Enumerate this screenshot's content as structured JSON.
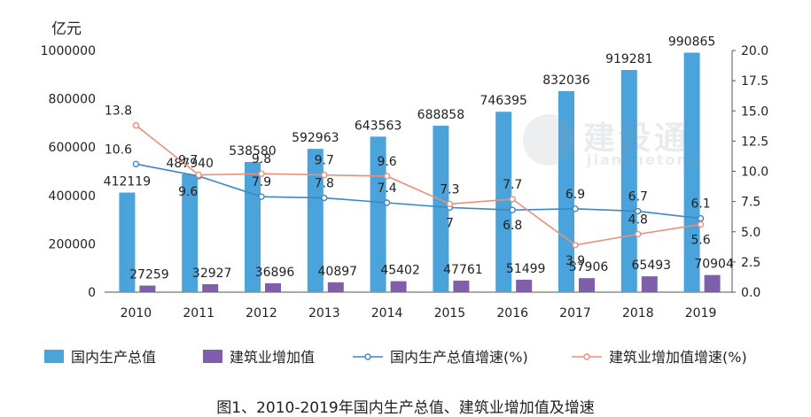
{
  "chart_data": {
    "type": "bar",
    "title": "图1、2010-2019年国内生产总值、建筑业增加值及增速",
    "y_unit": "亿元",
    "categories": [
      "2010",
      "2011",
      "2012",
      "2013",
      "2014",
      "2015",
      "2016",
      "2017",
      "2018",
      "2019"
    ],
    "ylim_left": [
      0,
      1000000
    ],
    "ylim_right": [
      0,
      20
    ],
    "left_ticks": [
      "0",
      "200000",
      "400000",
      "600000",
      "800000",
      "1000000"
    ],
    "right_ticks": [
      "0.0",
      "2.5",
      "5.0",
      "7.5",
      "10.0",
      "12.5",
      "15.0",
      "17.5",
      "20.0"
    ],
    "series": [
      {
        "name": "国内生产总值",
        "kind": "bar",
        "axis": "left",
        "color": "#4aa3db",
        "values": [
          412119,
          487940,
          538580,
          592963,
          643563,
          688858,
          746395,
          832036,
          919281,
          990865
        ]
      },
      {
        "name": "建筑业增加值",
        "kind": "bar",
        "axis": "left",
        "color": "#7f5fab",
        "values": [
          27259,
          32927,
          36896,
          40897,
          45402,
          47761,
          51499,
          57906,
          65493,
          70904
        ]
      },
      {
        "name": "国内生产总值增速(%)",
        "kind": "line",
        "axis": "right",
        "color": "#3f86c4",
        "values": [
          10.6,
          9.6,
          7.9,
          7.8,
          7.4,
          7,
          6.8,
          6.9,
          6.7,
          6.1
        ]
      },
      {
        "name": "建筑业增加值增速(%)",
        "kind": "line",
        "axis": "right",
        "color": "#e8907a",
        "values": [
          13.8,
          9.7,
          9.8,
          9.7,
          9.6,
          7.3,
          7.7,
          3.9,
          4.8,
          5.6
        ]
      }
    ]
  },
  "watermark": {
    "brand": "建设通",
    "sub": "jianshetong"
  }
}
